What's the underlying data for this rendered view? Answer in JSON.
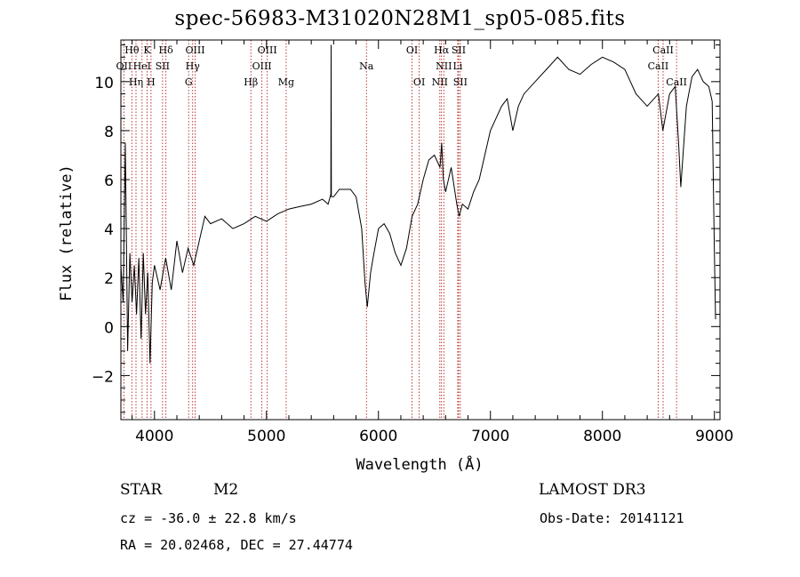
{
  "chart_data": {
    "type": "line",
    "title": "spec-56983-M31020N28M1_sp05-085.fits",
    "xlabel": "Wavelength (Å)",
    "ylabel": "Flux (relative)",
    "xlim": [
      3700,
      9050
    ],
    "ylim": [
      -3.8,
      11.7
    ],
    "xticks": [
      4000,
      5000,
      6000,
      7000,
      8000,
      9000
    ],
    "yticks": [
      -2,
      0,
      2,
      4,
      6,
      8,
      10
    ],
    "grid": false,
    "series": [
      {
        "color": "#000000",
        "x": [
          3700,
          3720,
          3740,
          3760,
          3780,
          3800,
          3820,
          3840,
          3860,
          3880,
          3900,
          3920,
          3940,
          3960,
          3980,
          4000,
          4050,
          4100,
          4150,
          4200,
          4250,
          4300,
          4350,
          4400,
          4450,
          4500,
          4600,
          4700,
          4800,
          4900,
          5000,
          5100,
          5200,
          5300,
          5400,
          5500,
          5550,
          5575,
          5577,
          5580,
          5600,
          5650,
          5700,
          5750,
          5800,
          5850,
          5880,
          5900,
          5930,
          5960,
          6000,
          6050,
          6100,
          6150,
          6200,
          6250,
          6300,
          6350,
          6400,
          6450,
          6500,
          6550,
          6565,
          6580,
          6600,
          6650,
          6700,
          6720,
          6750,
          6800,
          6850,
          6900,
          6950,
          7000,
          7050,
          7100,
          7150,
          7200,
          7250,
          7300,
          7400,
          7500,
          7600,
          7700,
          7800,
          7900,
          8000,
          8100,
          8200,
          8300,
          8400,
          8500,
          8540,
          8600,
          8650,
          8680,
          8700,
          8750,
          8800,
          8850,
          8900,
          8950,
          8980,
          9000,
          9010
        ],
        "y": [
          2.5,
          1.0,
          7.5,
          -1.0,
          3.0,
          1.0,
          2.5,
          0.5,
          2.8,
          -0.5,
          3.0,
          0.5,
          2.2,
          -1.5,
          1.8,
          2.5,
          1.5,
          2.8,
          1.5,
          3.5,
          2.2,
          3.2,
          2.5,
          3.5,
          4.5,
          4.2,
          4.4,
          4.0,
          4.2,
          4.5,
          4.3,
          4.6,
          4.8,
          4.9,
          5.0,
          5.2,
          5.0,
          5.4,
          11.5,
          5.3,
          5.3,
          5.6,
          5.6,
          5.6,
          5.3,
          4.0,
          1.8,
          0.8,
          2.2,
          3.0,
          4.0,
          4.2,
          3.8,
          3.0,
          2.5,
          3.2,
          4.5,
          5.0,
          6.0,
          6.8,
          7.0,
          6.5,
          7.5,
          6.0,
          5.5,
          6.5,
          5.0,
          4.5,
          5.0,
          4.8,
          5.5,
          6.0,
          7.0,
          8.0,
          8.5,
          9.0,
          9.3,
          8.0,
          9.0,
          9.5,
          10.0,
          10.5,
          11.0,
          10.5,
          10.3,
          10.7,
          11.0,
          10.8,
          10.5,
          9.5,
          9.0,
          9.5,
          8.0,
          9.5,
          9.8,
          7.5,
          5.7,
          9.0,
          10.2,
          10.5,
          10.0,
          9.8,
          9.2,
          3.0,
          0.3
        ]
      }
    ],
    "line_ids": [
      {
        "label": "Hθ",
        "wave": 3798,
        "row": 0
      },
      {
        "label": "OII",
        "wave": 3727,
        "row": 1
      },
      {
        "label": "Hη",
        "wave": 3835,
        "row": 2
      },
      {
        "label": "K",
        "wave": 3934,
        "row": 0
      },
      {
        "label": "HeI",
        "wave": 3889,
        "row": 1
      },
      {
        "label": "H",
        "wave": 3969,
        "row": 2
      },
      {
        "label": "SII",
        "wave": 4072,
        "row": 1
      },
      {
        "label": "Hδ",
        "wave": 4102,
        "row": 0
      },
      {
        "label": "OIII",
        "wave": 4363,
        "row": 0
      },
      {
        "label": "Hγ",
        "wave": 4341,
        "row": 1
      },
      {
        "label": "G",
        "wave": 4305,
        "row": 2
      },
      {
        "label": "Hβ",
        "wave": 4861,
        "row": 2
      },
      {
        "label": "OIII",
        "wave": 5007,
        "row": 0
      },
      {
        "label": "OIII",
        "wave": 4959,
        "row": 1
      },
      {
        "label": "Mg",
        "wave": 5176,
        "row": 2
      },
      {
        "label": "Na",
        "wave": 5893,
        "row": 1
      },
      {
        "label": "OI",
        "wave": 6300,
        "row": 0
      },
      {
        "label": "OI",
        "wave": 6364,
        "row": 2
      },
      {
        "label": "Hα",
        "wave": 6563,
        "row": 0
      },
      {
        "label": "SII",
        "wave": 6716,
        "row": 0
      },
      {
        "label": "NII",
        "wave": 6584,
        "row": 1
      },
      {
        "label": "Li",
        "wave": 6708,
        "row": 1
      },
      {
        "label": "NII",
        "wave": 6548,
        "row": 2
      },
      {
        "label": "SII",
        "wave": 6731,
        "row": 2
      },
      {
        "label": "CaII",
        "wave": 8542,
        "row": 0
      },
      {
        "label": "CaII",
        "wave": 8498,
        "row": 1
      },
      {
        "label": "CaII",
        "wave": 8662,
        "row": 2
      }
    ]
  },
  "info": {
    "class": "STAR",
    "subclass": "M2",
    "survey": "LAMOST DR3",
    "cz": "cz = -36.0 ± 22.8 km/s",
    "obsdate": "Obs-Date: 20141121",
    "radec": "RA =  20.02468, DEC =  27.44774"
  }
}
